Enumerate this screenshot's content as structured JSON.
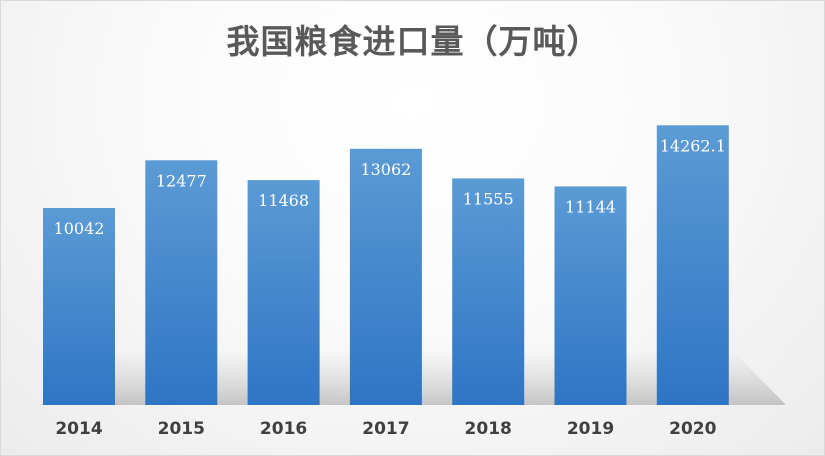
{
  "chart_data": {
    "type": "bar",
    "title": "我国粮食进口量（万吨）",
    "categories": [
      "2014",
      "2015",
      "2016",
      "2017",
      "2018",
      "2019",
      "2020"
    ],
    "values": [
      10042,
      12477,
      11468,
      13062,
      11555,
      11144,
      14262.1
    ],
    "value_labels": [
      "10042",
      "12477",
      "11468",
      "13062",
      "11555",
      "11144",
      "14262.1"
    ],
    "ylim": [
      0,
      15500
    ],
    "grid": false,
    "legend": "none",
    "bar_color_top": "#5B9BD5",
    "bar_color_bottom": "#2E75C4"
  }
}
